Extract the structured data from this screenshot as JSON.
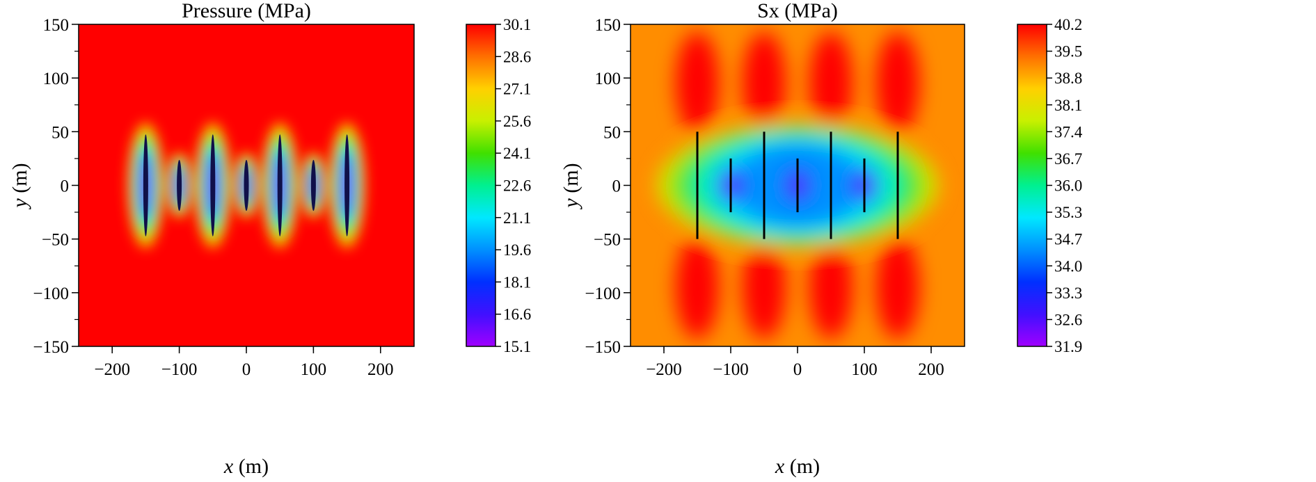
{
  "chart_data": [
    {
      "type": "heatmap",
      "title": "Pressure (MPa)",
      "xlabel_var": "x",
      "xlabel_unit": " (m)",
      "ylabel_var": "y",
      "ylabel_unit": " (m)",
      "xlim": [
        -250,
        250
      ],
      "ylim": [
        -150,
        150
      ],
      "xticks": [
        -200,
        -100,
        0,
        100,
        200
      ],
      "yticks": [
        150,
        100,
        50,
        0,
        -50,
        -100,
        -150
      ],
      "colorbar": {
        "min": 15.1,
        "max": 30.1,
        "ticks": [
          "30.1",
          "28.6",
          "27.1",
          "25.6",
          "24.1",
          "22.6",
          "21.1",
          "19.6",
          "18.1",
          "16.6",
          "15.1"
        ]
      },
      "fractures": [
        {
          "x": -150,
          "half_length": 50
        },
        {
          "x": -100,
          "half_length": 25
        },
        {
          "x": -50,
          "half_length": 50
        },
        {
          "x": 0,
          "half_length": 25
        },
        {
          "x": 50,
          "half_length": 50
        },
        {
          "x": 100,
          "half_length": 25
        },
        {
          "x": 150,
          "half_length": 50
        }
      ],
      "background_value": 30.1,
      "min_value": 15.1
    },
    {
      "type": "heatmap",
      "title": "Sx (MPa)",
      "xlabel_var": "x",
      "xlabel_unit": " (m)",
      "ylabel_var": "y",
      "ylabel_unit": " (m)",
      "xlim": [
        -250,
        250
      ],
      "ylim": [
        -150,
        150
      ],
      "xticks": [
        -200,
        -100,
        0,
        100,
        200
      ],
      "yticks": [
        150,
        100,
        50,
        0,
        -50,
        -100,
        -150
      ],
      "colorbar": {
        "min": 31.9,
        "max": 40.2,
        "ticks": [
          "40.2",
          "39.5",
          "38.8",
          "38.1",
          "37.4",
          "36.7",
          "36.0",
          "35.3",
          "34.7",
          "34.0",
          "33.3",
          "32.6",
          "31.9"
        ]
      },
      "fractures": [
        {
          "x": -150,
          "half_length": 50
        },
        {
          "x": -100,
          "half_length": 25
        },
        {
          "x": -50,
          "half_length": 50
        },
        {
          "x": 0,
          "half_length": 25
        },
        {
          "x": 50,
          "half_length": 50
        },
        {
          "x": 100,
          "half_length": 25
        },
        {
          "x": 150,
          "half_length": 50
        }
      ]
    }
  ]
}
